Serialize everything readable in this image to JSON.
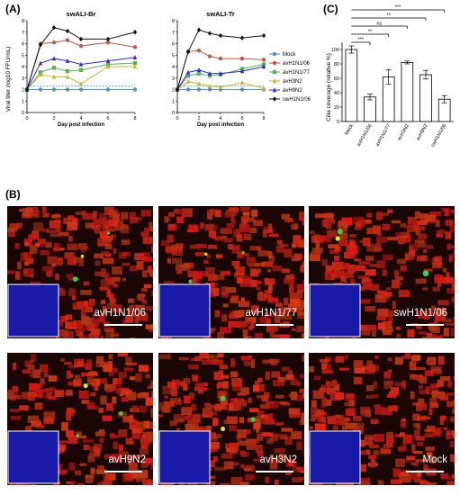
{
  "panels": {
    "a": "(A)",
    "b": "(B)",
    "c": "(C)"
  },
  "colors": {
    "mock": "#4a90d9",
    "avH1N1_06": "#c8553d",
    "avH1N1_77": "#59b34f",
    "avH3N2": "#c9b72a",
    "avH9N2": "#2a2ae0",
    "swH1N1_06": "#111111",
    "tissue": "#c8281e",
    "dapi": "#1a1aa8"
  },
  "chart_data": [
    {
      "type": "line",
      "title": "swALI-Br",
      "xlabel": "Day post infection",
      "ylabel": "Viral titer (log10 FFU/mL)",
      "xlim": [
        0,
        8
      ],
      "ylim": [
        0,
        8
      ],
      "xticks": [
        "0",
        "2",
        "4",
        "6",
        "8"
      ],
      "yticks": [
        "0",
        "1",
        "2",
        "3",
        "4",
        "5",
        "6",
        "7",
        "8"
      ],
      "detection_limit": 2.3,
      "x": [
        0,
        1,
        2,
        3,
        4,
        6,
        8
      ],
      "series": [
        {
          "name": "Mock",
          "values": [
            2.0,
            2.0,
            2.0,
            2.0,
            2.0,
            2.0,
            2.0
          ]
        },
        {
          "name": "avH1N1/06",
          "values": [
            2.0,
            6.0,
            6.1,
            6.3,
            5.8,
            6.1,
            5.7
          ]
        },
        {
          "name": "avH1N1/77",
          "values": [
            2.0,
            3.5,
            3.9,
            3.6,
            3.7,
            4.2,
            4.3
          ]
        },
        {
          "name": "avH3N2",
          "values": [
            2.0,
            3.3,
            3.1,
            3.1,
            2.5,
            4.0,
            4.0
          ]
        },
        {
          "name": "avH9N2",
          "values": [
            2.0,
            4.3,
            4.7,
            4.5,
            4.2,
            4.5,
            4.8
          ]
        },
        {
          "name": "swH1N1/06",
          "values": [
            2.0,
            5.9,
            7.4,
            7.1,
            6.4,
            6.4,
            7.0
          ]
        }
      ]
    },
    {
      "type": "line",
      "title": "swALI-Tr",
      "xlabel": "Day post infection",
      "xlim": [
        0,
        8
      ],
      "ylim": [
        0,
        8
      ],
      "xticks": [
        "0",
        "2",
        "4",
        "6",
        "8"
      ],
      "yticks": [
        "0",
        "1",
        "2",
        "3",
        "4",
        "5",
        "6",
        "7",
        "8"
      ],
      "detection_limit": 2.3,
      "x": [
        0,
        1,
        2,
        3,
        4,
        6,
        8
      ],
      "series": [
        {
          "name": "Mock",
          "values": [
            2.0,
            2.0,
            2.0,
            2.0,
            2.0,
            2.0,
            2.0
          ]
        },
        {
          "name": "avH1N1/06",
          "values": [
            2.0,
            5.3,
            5.4,
            4.9,
            4.7,
            4.7,
            4.6
          ]
        },
        {
          "name": "avH1N1/77",
          "values": [
            2.0,
            3.2,
            3.4,
            3.2,
            3.3,
            3.8,
            4.2
          ]
        },
        {
          "name": "avH3N2",
          "values": [
            2.0,
            2.7,
            2.5,
            2.3,
            2.2,
            2.6,
            2.1
          ]
        },
        {
          "name": "avH9N2",
          "values": [
            2.0,
            3.5,
            3.7,
            3.4,
            3.4,
            3.6,
            4.0
          ]
        },
        {
          "name": "swH1N1/06",
          "values": [
            2.0,
            5.3,
            7.2,
            6.9,
            6.7,
            6.5,
            6.7
          ]
        }
      ]
    },
    {
      "type": "bar",
      "ylabel": "Cilia coverage (relative %)",
      "ylim": [
        0,
        100
      ],
      "yticks": [
        "0",
        "20",
        "40",
        "60",
        "80",
        "100"
      ],
      "categories": [
        "Mock",
        "avH1N1/06",
        "avH1N1/77",
        "avH3N2",
        "avH9N2",
        "swH1N1/06"
      ],
      "values": [
        100,
        34,
        62,
        82,
        65,
        31
      ],
      "errors": [
        5,
        4,
        10,
        2,
        6,
        5
      ],
      "significance": [
        {
          "from": "Mock",
          "to": "avH1N1/06",
          "label": "***"
        },
        {
          "from": "Mock",
          "to": "avH1N1/77",
          "label": "**"
        },
        {
          "from": "Mock",
          "to": "avH3N2",
          "label": "ns"
        },
        {
          "from": "Mock",
          "to": "avH9N2",
          "label": "**"
        },
        {
          "from": "Mock",
          "to": "swH1N1/06",
          "label": "***"
        }
      ]
    }
  ],
  "legend": [
    "Mock",
    "avH1N1/06",
    "avH1N1/77",
    "avH3N2",
    "avH9N2",
    "swH1N1/06"
  ],
  "micrographs": [
    {
      "label": "avH1N1/06"
    },
    {
      "label": "avH1N1/77"
    },
    {
      "label": "swH1N1/06"
    },
    {
      "label": "avH9N2"
    },
    {
      "label": "avH3N2"
    },
    {
      "label": "Mock"
    }
  ]
}
